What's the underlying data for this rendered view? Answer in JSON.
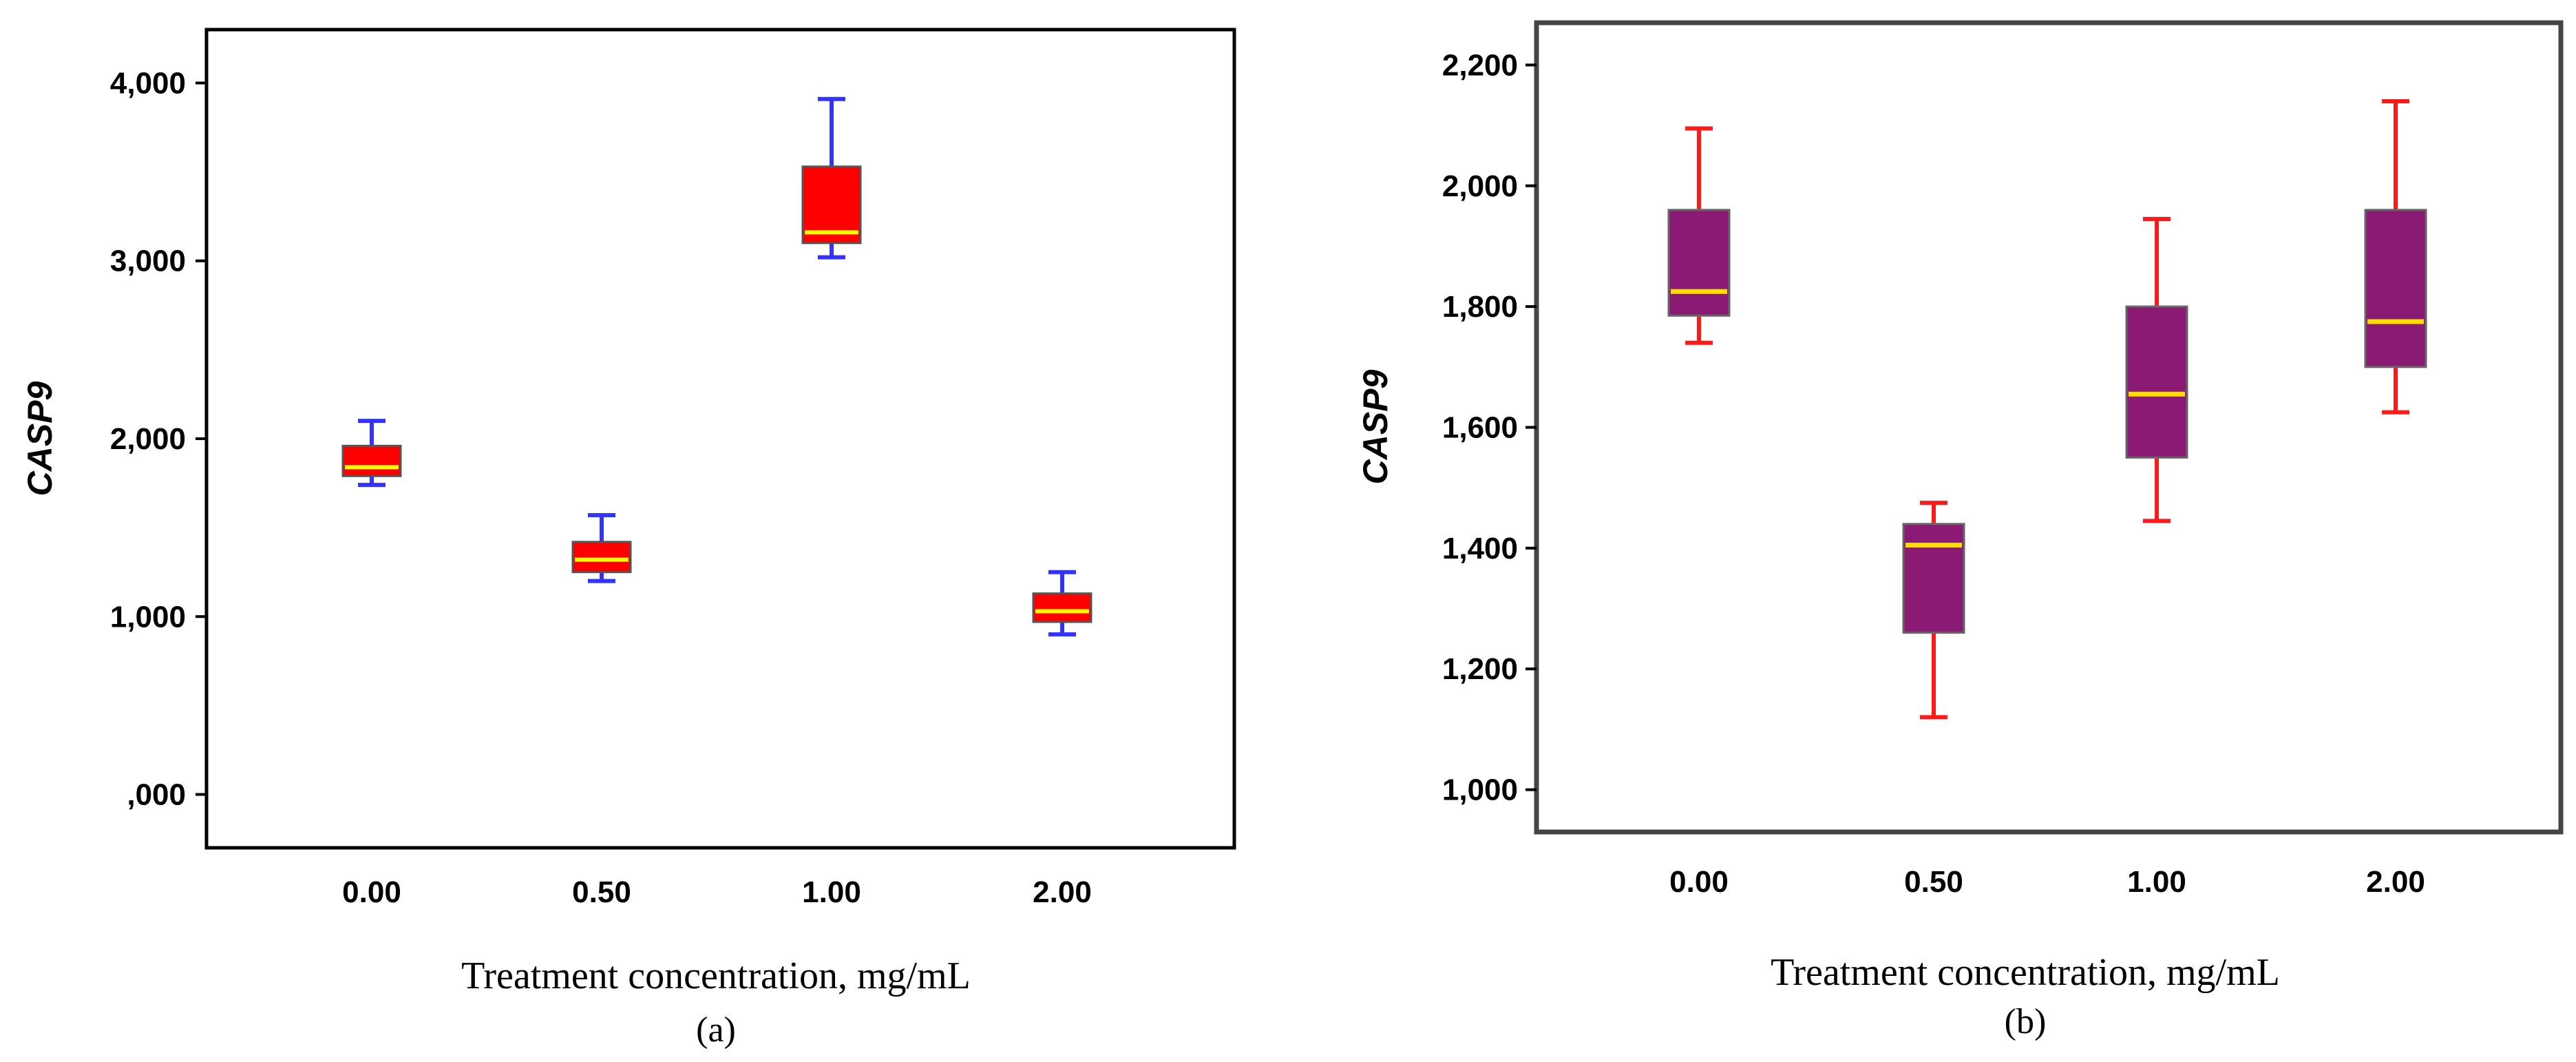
{
  "chart_data": [
    {
      "type": "box",
      "panel_label": "(a)",
      "xlabel": "Treatment concentration, mg/mL",
      "ylabel": "CASP9",
      "categories": [
        "0.00",
        "0.50",
        "1.00",
        "2.00"
      ],
      "ylim": [
        -300,
        4300
      ],
      "y_ticks": [
        0,
        1000,
        2000,
        3000,
        4000
      ],
      "y_tick_labels": [
        ",000",
        "1,000",
        "2,000",
        "3,000",
        "4,000"
      ],
      "colors": {
        "box_fill": "#ff0000",
        "box_edge": "#555555",
        "whisker": "#3333ff",
        "median": "#ffff00"
      },
      "boxes": [
        {
          "category": "0.00",
          "min": 1740,
          "q1": 1790,
          "median": 1840,
          "q3": 1960,
          "max": 2100
        },
        {
          "category": "0.50",
          "min": 1200,
          "q1": 1250,
          "median": 1320,
          "q3": 1420,
          "max": 1570
        },
        {
          "category": "1.00",
          "min": 3020,
          "q1": 3100,
          "median": 3160,
          "q3": 3530,
          "max": 3910
        },
        {
          "category": "2.00",
          "min": 900,
          "q1": 970,
          "median": 1030,
          "q3": 1130,
          "max": 1250
        }
      ]
    },
    {
      "type": "box",
      "panel_label": "(b)",
      "xlabel": "Treatment concentration, mg/mL",
      "ylabel": "CASP9",
      "categories": [
        "0.00",
        "0.50",
        "1.00",
        "2.00"
      ],
      "ylim": [
        930,
        2270
      ],
      "y_ticks": [
        1000,
        1200,
        1400,
        1600,
        1800,
        2000,
        2200
      ],
      "y_tick_labels": [
        "1,000",
        "1,200",
        "1,400",
        "1,600",
        "1,800",
        "2,000",
        "2,200"
      ],
      "colors": {
        "box_fill": "#8b1a75",
        "box_edge": "#666666",
        "whisker": "#ff1a1a",
        "median": "#ffdd00"
      },
      "boxes": [
        {
          "category": "0.00",
          "min": 1740,
          "q1": 1785,
          "median": 1825,
          "q3": 1960,
          "max": 2095
        },
        {
          "category": "0.50",
          "min": 1120,
          "q1": 1260,
          "median": 1405,
          "q3": 1440,
          "max": 1475
        },
        {
          "category": "1.00",
          "min": 1445,
          "q1": 1550,
          "median": 1655,
          "q3": 1800,
          "max": 1945
        },
        {
          "category": "2.00",
          "min": 1625,
          "q1": 1700,
          "median": 1775,
          "q3": 1960,
          "max": 2140
        }
      ]
    }
  ]
}
